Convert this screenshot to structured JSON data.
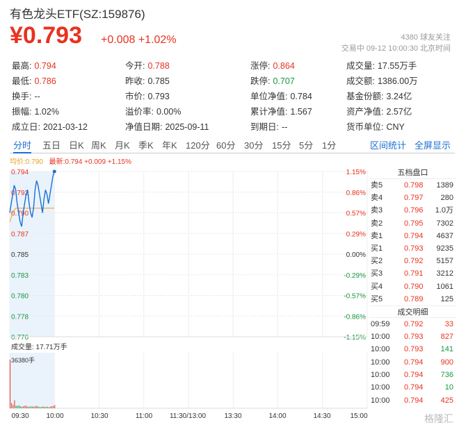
{
  "header": {
    "title": "有色龙头ETF(SZ:159876)",
    "price": "¥0.793",
    "change": "+0.008 +1.02%",
    "follow": "4380 球友关注",
    "status": "交易中 09-12 10:00:30 北京时间"
  },
  "stats": [
    {
      "label": "最高:",
      "value": "0.794",
      "color": "red"
    },
    {
      "label": "今开:",
      "value": "0.788",
      "color": "red"
    },
    {
      "label": "涨停:",
      "value": "0.864",
      "color": "red"
    },
    {
      "label": "成交量:",
      "value": "17.55万手",
      "color": "black"
    },
    {
      "label": "最低:",
      "value": "0.786",
      "color": "red"
    },
    {
      "label": "昨收:",
      "value": "0.785",
      "color": "black"
    },
    {
      "label": "跌停:",
      "value": "0.707",
      "color": "green"
    },
    {
      "label": "成交额:",
      "value": "1386.00万",
      "color": "black"
    },
    {
      "label": "换手:",
      "value": "--",
      "color": "black"
    },
    {
      "label": "市价:",
      "value": "0.793",
      "color": "black"
    },
    {
      "label": "单位净值:",
      "value": "0.784",
      "color": "black"
    },
    {
      "label": "基金份额:",
      "value": "3.24亿",
      "color": "black"
    },
    {
      "label": "振幅:",
      "value": "1.02%",
      "color": "black"
    },
    {
      "label": "溢价率:",
      "value": "0.00%",
      "color": "black"
    },
    {
      "label": "累计净值:",
      "value": "1.567",
      "color": "black"
    },
    {
      "label": "资产净值:",
      "value": "2.57亿",
      "color": "black"
    },
    {
      "label": "成立日:",
      "value": "2021-03-12",
      "color": "black"
    },
    {
      "label": "净值日期:",
      "value": "2025-09-11",
      "color": "black"
    },
    {
      "label": "到期日:",
      "value": "--",
      "color": "black"
    },
    {
      "label": "货币单位:",
      "value": "CNY",
      "color": "black"
    }
  ],
  "tabs": [
    "分时",
    "五日",
    "日K",
    "周K",
    "月K",
    "季K",
    "年K",
    "120分",
    "60分",
    "30分",
    "15分",
    "5分",
    "1分"
  ],
  "tab_right": [
    "区间统计",
    "全屏显示"
  ],
  "legend": {
    "avg": "均价:0.790",
    "latest": "最新:0.794 +0.009 +1.15%"
  },
  "chart_data": {
    "type": "line",
    "price_ticks": [
      "0.794",
      "0.792",
      "0.790",
      "0.787",
      "0.785",
      "0.783",
      "0.780",
      "0.778",
      "0.776"
    ],
    "pct_ticks": [
      "1.15%",
      "0.86%",
      "0.57%",
      "0.29%",
      "0.00%",
      "-0.29%",
      "-0.57%",
      "-0.86%",
      "-1.15%"
    ],
    "ylim": [
      0.776,
      0.794
    ],
    "x_ticks": [
      "09:30",
      "10:00",
      "10:30",
      "11:00",
      "11:30/13:00",
      "13:30",
      "14:00",
      "14:30",
      "15:00"
    ],
    "price_series": [
      0.7895,
      0.7905,
      0.7915,
      0.7925,
      0.792,
      0.7905,
      0.7895,
      0.7885,
      0.788,
      0.7895,
      0.7905,
      0.7915,
      0.792,
      0.7905,
      0.7895,
      0.789,
      0.79,
      0.792,
      0.793,
      0.7925,
      0.7915,
      0.7905,
      0.7895,
      0.791,
      0.792,
      0.7915,
      0.7905,
      0.7915,
      0.7925,
      0.7935,
      0.794
    ],
    "avg_series": [
      0.7885,
      0.789,
      0.7895,
      0.7898,
      0.79,
      0.79,
      0.79,
      0.79,
      0.79,
      0.79,
      0.79,
      0.79,
      0.79,
      0.79,
      0.79,
      0.79,
      0.79,
      0.79,
      0.79,
      0.79,
      0.79,
      0.79,
      0.79,
      0.79,
      0.79,
      0.79,
      0.79,
      0.79,
      0.79,
      0.79,
      0.79
    ],
    "volume_label": "成交量: 17.71万手",
    "volume_max_label": "36380手",
    "volumes": [
      36380,
      4000,
      2500,
      6000,
      2000,
      1800,
      2200,
      1500,
      1200,
      1600,
      2000,
      1800,
      1300,
      1100,
      1500,
      1400,
      1200,
      1600,
      1800,
      1200,
      1000,
      900,
      1400,
      1100,
      1000,
      1300,
      800,
      1200,
      1500,
      1800,
      2400
    ],
    "volume_max": 36380
  },
  "orderbook": {
    "title": "五档盘口",
    "rows": [
      {
        "label": "卖5",
        "price": "0.798",
        "vol": "1389"
      },
      {
        "label": "卖4",
        "price": "0.797",
        "vol": "280"
      },
      {
        "label": "卖3",
        "price": "0.796",
        "vol": "1.0万"
      },
      {
        "label": "卖2",
        "price": "0.795",
        "vol": "7302"
      },
      {
        "label": "卖1",
        "price": "0.794",
        "vol": "4637"
      },
      {
        "label": "买1",
        "price": "0.793",
        "vol": "9235"
      },
      {
        "label": "买2",
        "price": "0.792",
        "vol": "5157"
      },
      {
        "label": "买3",
        "price": "0.791",
        "vol": "3212"
      },
      {
        "label": "买4",
        "price": "0.790",
        "vol": "1061"
      },
      {
        "label": "买5",
        "price": "0.789",
        "vol": "125"
      }
    ]
  },
  "deals": {
    "title": "成交明细",
    "rows": [
      {
        "time": "09:59",
        "price": "0.792",
        "vol": "33",
        "side": "red"
      },
      {
        "time": "10:00",
        "price": "0.793",
        "vol": "827",
        "side": "red"
      },
      {
        "time": "10:00",
        "price": "0.793",
        "vol": "141",
        "side": "green"
      },
      {
        "time": "10:00",
        "price": "0.794",
        "vol": "900",
        "side": "red"
      },
      {
        "time": "10:00",
        "price": "0.794",
        "vol": "736",
        "side": "green"
      },
      {
        "time": "10:00",
        "price": "0.794",
        "vol": "10",
        "side": "green"
      },
      {
        "time": "10:00",
        "price": "0.794",
        "vol": "425",
        "side": "red"
      }
    ]
  },
  "watermark": "格隆汇",
  "colors": {
    "up": "#e8321f",
    "down": "#1a9641",
    "line": "#1a6fd3",
    "avg": "#e8a21f"
  }
}
